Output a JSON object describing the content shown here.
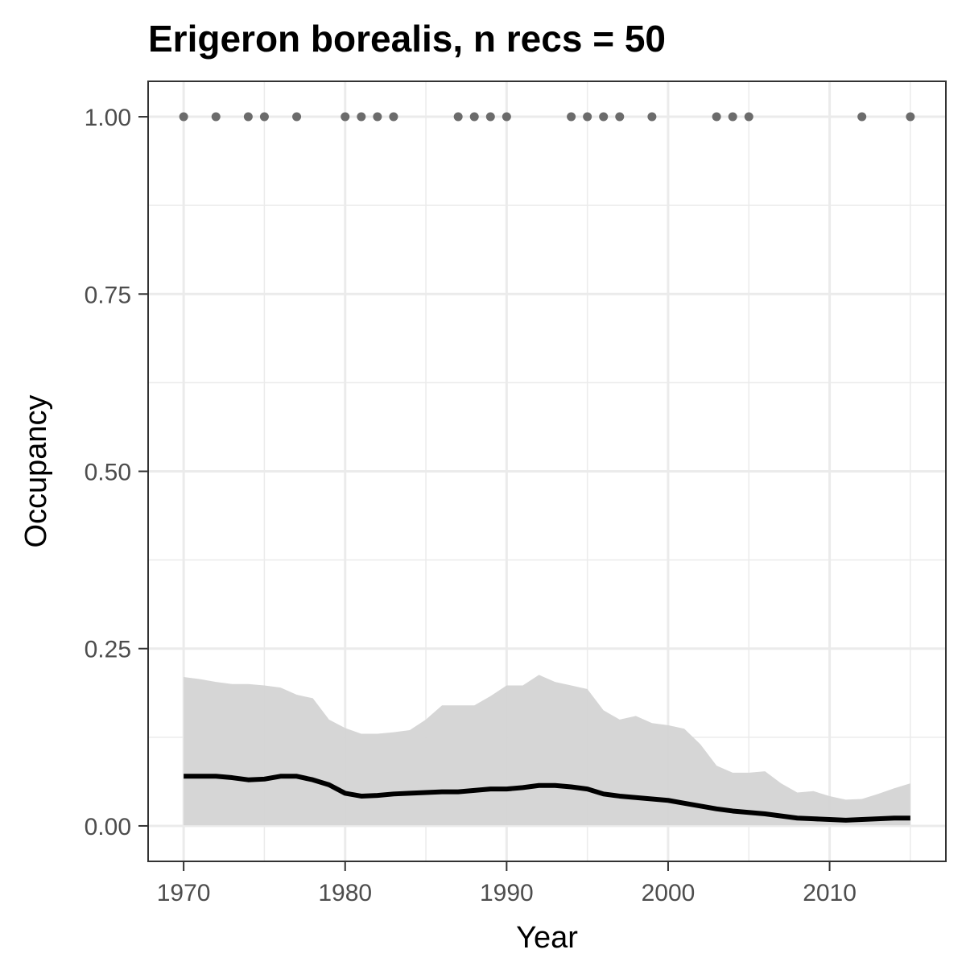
{
  "chart_data": {
    "type": "line",
    "title": "Erigeron borealis, n recs = 50",
    "xlabel": "Year",
    "ylabel": "Occupancy",
    "xlim": [
      1967.8,
      2017.2
    ],
    "ylim": [
      -0.05,
      1.05
    ],
    "x_ticks": [
      {
        "value": 1970,
        "label": "1970"
      },
      {
        "value": 1980,
        "label": "1980"
      },
      {
        "value": 1990,
        "label": "1990"
      },
      {
        "value": 2000,
        "label": "2000"
      },
      {
        "value": 2010,
        "label": "2010"
      }
    ],
    "y_ticks": [
      {
        "value": 0,
        "label": "0.00"
      },
      {
        "value": 0.25,
        "label": "0.25"
      },
      {
        "value": 0.5,
        "label": "0.50"
      },
      {
        "value": 0.75,
        "label": "0.75"
      },
      {
        "value": 1,
        "label": "1.00"
      }
    ],
    "grid": true,
    "legend": "none",
    "colors": {
      "line": "#000000",
      "band": "#d4d4d4",
      "points": "#6b6b6b",
      "grid": "#ebebeb",
      "border": "#333333"
    },
    "records": {
      "y": 1,
      "years": [
        1970,
        1972,
        1974,
        1975,
        1977,
        1980,
        1981,
        1982,
        1983,
        1987,
        1988,
        1989,
        1990,
        1994,
        1995,
        1996,
        1997,
        1999,
        2003,
        2004,
        2005,
        2012,
        2015
      ]
    },
    "series": [
      {
        "years": [
          1970,
          1971,
          1972,
          1973,
          1974,
          1975,
          1976,
          1977,
          1978,
          1979,
          1980,
          1981,
          1982,
          1983,
          1984,
          1985,
          1986,
          1987,
          1988,
          1989,
          1990,
          1991,
          1992,
          1993,
          1994,
          1995,
          1996,
          1997,
          1998,
          1999,
          2000,
          2001,
          2002,
          2003,
          2004,
          2005,
          2006,
          2007,
          2008,
          2009,
          2010,
          2011,
          2012,
          2013,
          2014,
          2015
        ],
        "mean": [
          0.07,
          0.07,
          0.07,
          0.068,
          0.065,
          0.066,
          0.07,
          0.07,
          0.065,
          0.058,
          0.046,
          0.042,
          0.043,
          0.045,
          0.046,
          0.047,
          0.048,
          0.048,
          0.05,
          0.052,
          0.052,
          0.054,
          0.057,
          0.057,
          0.055,
          0.052,
          0.045,
          0.042,
          0.04,
          0.038,
          0.036,
          0.032,
          0.028,
          0.024,
          0.021,
          0.019,
          0.017,
          0.014,
          0.011,
          0.01,
          0.009,
          0.008,
          0.009,
          0.01,
          0.011,
          0.011
        ],
        "lower": [
          0.001,
          0.001,
          0.001,
          0.001,
          0.001,
          0.001,
          0.001,
          0.001,
          0.001,
          0.001,
          0.001,
          0.001,
          0.001,
          0.001,
          0.001,
          0.001,
          0.001,
          0.001,
          0.001,
          0.001,
          0.001,
          0.001,
          0.001,
          0.001,
          0.001,
          0.001,
          0.001,
          0.001,
          0.001,
          0.001,
          0.001,
          0.001,
          0.001,
          0.001,
          0.001,
          0.001,
          0.001,
          0.001,
          0.001,
          0.001,
          0.001,
          0.001,
          0.001,
          0.001,
          0.001,
          0.001
        ],
        "upper": [
          0.21,
          0.207,
          0.203,
          0.2,
          0.2,
          0.198,
          0.195,
          0.185,
          0.18,
          0.15,
          0.138,
          0.13,
          0.13,
          0.132,
          0.135,
          0.15,
          0.17,
          0.17,
          0.17,
          0.183,
          0.198,
          0.198,
          0.213,
          0.203,
          0.198,
          0.193,
          0.163,
          0.15,
          0.155,
          0.145,
          0.142,
          0.137,
          0.115,
          0.085,
          0.075,
          0.075,
          0.077,
          0.06,
          0.047,
          0.049,
          0.042,
          0.037,
          0.038,
          0.045,
          0.053,
          0.06
        ]
      }
    ]
  }
}
